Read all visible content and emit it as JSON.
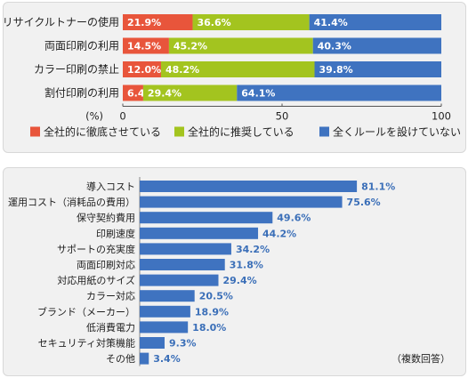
{
  "chart_data": [
    {
      "type": "bar",
      "orientation": "horizontal",
      "stacked": true,
      "categories": [
        "リサイクルトナーの使用",
        "両面印刷の利用",
        "カラー印刷の禁止",
        "割付印刷の利用"
      ],
      "series": [
        {
          "name": "全社的に徹底させている",
          "color": "#e8553b",
          "values": [
            21.9,
            14.5,
            12.0,
            6.4
          ]
        },
        {
          "name": "全社的に推奨している",
          "color": "#a3c41f",
          "values": [
            36.6,
            45.2,
            48.2,
            29.4
          ]
        },
        {
          "name": "全くルールを設けていない",
          "color": "#3f73c0",
          "values": [
            41.4,
            40.3,
            39.8,
            64.1
          ]
        }
      ],
      "value_labels": [
        [
          "21.9%",
          "36.6%",
          "41.4%"
        ],
        [
          "14.5%",
          "45.2%",
          "40.3%"
        ],
        [
          "12.0%",
          "48.2%",
          "39.8%"
        ],
        [
          "6.4%",
          "29.4%",
          "64.1%"
        ]
      ],
      "axis_unit": "(%)",
      "xlim": [
        0,
        100
      ],
      "xticks": [
        0,
        50,
        100
      ],
      "legend_position": "bottom"
    },
    {
      "type": "bar",
      "orientation": "horizontal",
      "categories": [
        "導入コスト",
        "運用コスト（消耗品の費用）",
        "保守契約費用",
        "印刷速度",
        "サポートの充実度",
        "両面印刷対応",
        "対応用紙のサイズ",
        "カラー対応",
        "ブランド（メーカー）",
        "低消費電力",
        "セキュリティ対策機能",
        "その他"
      ],
      "values": [
        81.1,
        75.6,
        49.6,
        44.2,
        34.2,
        31.8,
        29.4,
        20.5,
        18.9,
        18.0,
        9.3,
        3.4
      ],
      "value_labels": [
        "81.1%",
        "75.6%",
        "49.6%",
        "44.2%",
        "34.2%",
        "31.8%",
        "29.4%",
        "20.5%",
        "18.9%",
        "18.0%",
        "9.3%",
        "3.4%"
      ],
      "color": "#3f73c0",
      "xlim": [
        0,
        100
      ],
      "note": "（複数回答）"
    }
  ]
}
